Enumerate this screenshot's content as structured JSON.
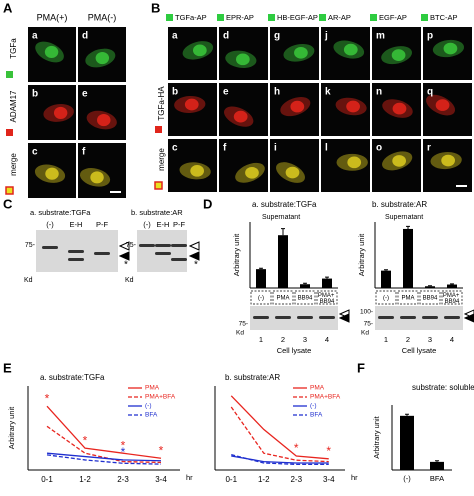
{
  "figure": {
    "A": {
      "label": "A",
      "columns": [
        "PMA(+)",
        "PMA(-)"
      ],
      "rows": [
        "TGFa",
        "ADAM17",
        "merge"
      ],
      "cells": [
        [
          "a",
          "d"
        ],
        [
          "b",
          "e"
        ],
        [
          "c",
          "f"
        ]
      ]
    },
    "B": {
      "label": "B",
      "columns": [
        "TGFa-AP",
        "EPR-AP",
        "HB-EGF-AP",
        "AR-AP",
        "EGF-AP",
        "BTC-AP"
      ],
      "rows": [
        "TGFa-HA",
        "merge"
      ],
      "cells": [
        [
          "a",
          "d",
          "g",
          "j",
          "m",
          "p"
        ],
        [
          "b",
          "e",
          "h",
          "k",
          "n",
          "q"
        ],
        [
          "c",
          "f",
          "i",
          "l",
          "o",
          "r"
        ]
      ]
    },
    "C": {
      "label": "C",
      "blots": [
        {
          "title": "a. substrate:TGFa",
          "lanes": [
            "(-)",
            "E-H",
            "P-F"
          ],
          "marker": "75-",
          "unit": "Kd",
          "band_mark": "*"
        },
        {
          "title": "b. substrate:AR",
          "lanes": [
            "(-)",
            "E-H",
            "P-F"
          ],
          "marker": "75-",
          "unit": "Kd",
          "band_mark": "*"
        }
      ]
    },
    "D": {
      "label": "D",
      "lysates": [
        {
          "markers": [
            "75-"
          ],
          "unit": "Kd",
          "lanes": [
            "1",
            "2",
            "3",
            "4"
          ],
          "caption": "Cell lysate"
        },
        {
          "markers": [
            "100-",
            "75-"
          ],
          "unit": "Kd",
          "lanes": [
            "1",
            "2",
            "3",
            "4"
          ],
          "caption": "Cell lysate"
        }
      ]
    },
    "E": {
      "label": "E"
    },
    "F": {
      "label": "F"
    }
  },
  "chart_data": [
    {
      "type": "bar",
      "title": "a. substrate:TGFa",
      "subtitle": "Supernatant",
      "y_label": "Arbitrary unit",
      "categories": [
        "(-)",
        "PMA",
        "BB94",
        "PMA+ BB94"
      ],
      "values": [
        1.0,
        2.8,
        0.2,
        0.5
      ],
      "errors": [
        0.05,
        0.35,
        0.05,
        0.08
      ],
      "color": "#000000",
      "ylim": [
        0,
        3.5
      ]
    },
    {
      "type": "bar",
      "title": "b. substrate:AR",
      "subtitle": "Supernatant",
      "y_label": "Arbitrary unit",
      "categories": [
        "(-)",
        "PMA",
        "BB94",
        "PMA+ BB94"
      ],
      "values": [
        1.0,
        3.4,
        0.1,
        0.2
      ],
      "errors": [
        0.05,
        0.15,
        0.03,
        0.04
      ],
      "color": "#000000",
      "ylim": [
        0,
        3.8
      ]
    },
    {
      "type": "line",
      "title": "a. substrate:TGFa",
      "y_label": "Arbitrary unit",
      "x_label": "hr",
      "categories": [
        "0-1",
        "1-2",
        "2-3",
        "3-4"
      ],
      "ylim": [
        0,
        5
      ],
      "series": [
        {
          "name": "PMA",
          "color": "#e8251f",
          "style": "solid",
          "values": [
            3.8,
            1.3,
            1.0,
            0.7
          ],
          "significance": [
            "*",
            "*",
            "*",
            "*"
          ]
        },
        {
          "name": "PMA+BFA",
          "color": "#e8251f",
          "style": "dashed",
          "values": [
            2.6,
            1.0,
            0.5,
            0.45
          ]
        },
        {
          "name": "(-)",
          "color": "#1f2fcf",
          "style": "solid",
          "values": [
            1.0,
            0.8,
            0.6,
            0.55
          ],
          "significance": [
            null,
            null,
            "*",
            null
          ]
        },
        {
          "name": "BFA",
          "color": "#1f2fcf",
          "style": "dashed",
          "values": [
            0.9,
            0.6,
            0.4,
            0.35
          ]
        }
      ]
    },
    {
      "type": "line",
      "title": "b. substrate:AR",
      "x_label": "hr",
      "categories": [
        "0-1",
        "1-2",
        "2-3",
        "3-4"
      ],
      "ylim": [
        0,
        6
      ],
      "series": [
        {
          "name": "PMA",
          "color": "#e8251f",
          "style": "solid",
          "values": [
            5.3,
            2.9,
            1.0,
            0.8
          ],
          "significance": [
            null,
            null,
            "*",
            "*"
          ]
        },
        {
          "name": "PMA+BFA",
          "color": "#e8251f",
          "style": "dashed",
          "values": [
            4.5,
            1.2,
            0.7,
            0.6
          ]
        },
        {
          "name": "(-)",
          "color": "#1f2fcf",
          "style": "solid",
          "values": [
            1.0,
            0.6,
            0.5,
            0.5
          ]
        },
        {
          "name": "BFA",
          "color": "#1f2fcf",
          "style": "dashed",
          "values": [
            1.1,
            0.5,
            0.4,
            0.4
          ]
        }
      ]
    },
    {
      "type": "bar",
      "title": "substrate: soluble AP",
      "y_label": "Arbitrary unit",
      "categories": [
        "(-)",
        "BFA"
      ],
      "values": [
        1.0,
        0.15
      ],
      "errors": [
        0.03,
        0.02
      ],
      "color": "#000000",
      "ylim": [
        0,
        1.2
      ]
    }
  ]
}
